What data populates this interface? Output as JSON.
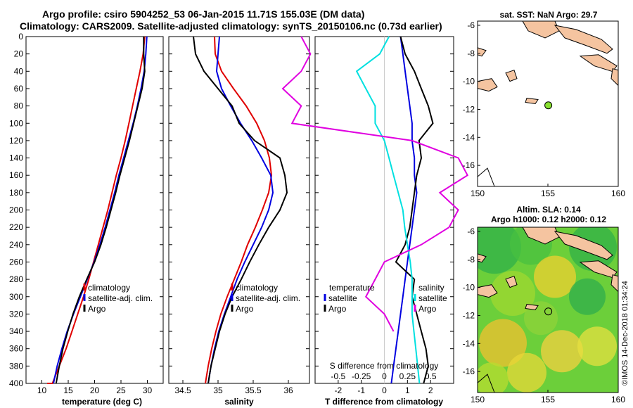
{
  "figure": {
    "title_line1": "Argo profile: csiro 5904252_53 06-Jan-2015 11.71S 155.03E (DM data)",
    "title_line2": "Climatology: CARS2009. Satellite-adjusted climatology: synTS_20150106.nc (0.73d earlier)",
    "watermark": "©IMOS 14-Dec-2018 01:34:24"
  },
  "colors": {
    "climatology": "#e00000",
    "satellite": "#0000e0",
    "argo": "#000000",
    "cyan": "#00e0e0",
    "magenta": "#e000e0",
    "land": "#f5c4a0",
    "float": "#88e030"
  },
  "chart_data": [
    {
      "type": "line",
      "title": "temperature",
      "xlabel": "temperature (deg C)",
      "ylabel": "",
      "xlim": [
        7,
        33
      ],
      "ylim": [
        400,
        0
      ],
      "xticks": [
        10,
        15,
        20,
        25,
        30
      ],
      "yticks": [
        0,
        20,
        40,
        60,
        80,
        100,
        120,
        140,
        160,
        180,
        200,
        220,
        240,
        260,
        280,
        300,
        320,
        340,
        360,
        380,
        400
      ],
      "legend": [
        "climatology",
        "satellite-adj. clim.",
        "Argo"
      ],
      "series": [
        {
          "name": "climatology",
          "color": "#e00000",
          "x": [
            29.5,
            29.2,
            28.6,
            27.9,
            27.2,
            26.5,
            25.8,
            25.0,
            24.1,
            23.3,
            22.5,
            21.6,
            20.7,
            19.8,
            18.9,
            17.9,
            16.8,
            15.7,
            14.6,
            13.3,
            12.0,
            11.0
          ],
          "y": [
            0,
            20,
            40,
            60,
            80,
            100,
            120,
            140,
            160,
            180,
            200,
            220,
            240,
            260,
            280,
            300,
            320,
            340,
            360,
            380,
            400,
            400
          ]
        },
        {
          "name": "satellite-adj. clim.",
          "color": "#0000e0",
          "x": [
            29.9,
            29.7,
            29.4,
            28.8,
            28.1,
            27.3,
            26.4,
            25.5,
            24.6,
            23.8,
            22.9,
            22.0,
            21.0,
            19.9,
            18.6,
            17.3,
            16.0,
            14.8,
            13.8,
            12.9,
            12.2
          ],
          "y": [
            0,
            20,
            40,
            60,
            80,
            100,
            120,
            140,
            160,
            180,
            200,
            220,
            240,
            260,
            280,
            300,
            320,
            340,
            360,
            380,
            400
          ]
        },
        {
          "name": "Argo",
          "color": "#000000",
          "x": [
            29.3,
            29.3,
            29.5,
            29.0,
            28.2,
            27.4,
            26.6,
            25.7,
            24.8,
            24.0,
            23.1,
            22.2,
            21.2,
            20.0,
            18.5,
            17.1,
            15.9,
            14.9,
            14.0,
            13.3,
            12.7
          ],
          "y": [
            0,
            20,
            40,
            60,
            80,
            100,
            120,
            140,
            160,
            180,
            200,
            220,
            240,
            260,
            280,
            300,
            320,
            340,
            360,
            380,
            400
          ]
        }
      ]
    },
    {
      "type": "line",
      "title": "salinity",
      "xlabel": "salinity",
      "ylabel": "",
      "xlim": [
        34.3,
        36.3
      ],
      "ylim": [
        400,
        0
      ],
      "xticks": [
        34.5,
        35,
        35.5,
        36
      ],
      "legend": [
        "climatology",
        "satellite-adj. clim.",
        "Argo"
      ],
      "series": [
        {
          "name": "climatology",
          "color": "#e00000",
          "x": [
            34.95,
            34.96,
            35.05,
            35.22,
            35.4,
            35.55,
            35.66,
            35.73,
            35.76,
            35.72,
            35.63,
            35.53,
            35.42,
            35.33,
            35.23,
            35.13,
            35.04,
            34.97,
            34.91,
            34.86,
            34.82
          ],
          "y": [
            0,
            20,
            40,
            60,
            80,
            100,
            120,
            140,
            160,
            180,
            200,
            220,
            240,
            260,
            280,
            300,
            320,
            340,
            360,
            380,
            400
          ]
        },
        {
          "name": "satellite-adj. clim.",
          "color": "#0000e0",
          "x": [
            35.02,
            35.0,
            34.98,
            35.05,
            35.18,
            35.32,
            35.48,
            35.62,
            35.75,
            35.78,
            35.72,
            35.62,
            35.5,
            35.38,
            35.27,
            35.18,
            35.09,
            35.01,
            34.95,
            34.9,
            34.86
          ],
          "y": [
            0,
            20,
            40,
            60,
            80,
            100,
            120,
            140,
            160,
            180,
            200,
            220,
            240,
            260,
            280,
            300,
            320,
            340,
            360,
            380,
            400
          ]
        },
        {
          "name": "Argo",
          "color": "#000000",
          "x": [
            34.65,
            34.68,
            34.8,
            35.0,
            35.2,
            35.3,
            35.52,
            35.88,
            35.95,
            35.98,
            35.88,
            35.72,
            35.58,
            35.45,
            35.33,
            35.2,
            35.1,
            35.02,
            34.96,
            34.9,
            34.86
          ],
          "y": [
            0,
            20,
            40,
            60,
            80,
            100,
            120,
            140,
            160,
            180,
            200,
            220,
            240,
            260,
            280,
            300,
            320,
            340,
            360,
            380,
            400
          ]
        }
      ]
    },
    {
      "type": "line",
      "title": "difference from climatology",
      "xlabel": "T difference from climatology",
      "xlabel_top": "S difference from climatology",
      "ylabel": "",
      "xlim": [
        -3,
        3
      ],
      "ylim": [
        400,
        0
      ],
      "xticks": [
        -2,
        -1,
        0,
        1,
        2
      ],
      "xticks_top": [
        "-0.5",
        "-0.25",
        "0",
        "0.25",
        "0.5"
      ],
      "legend_left_title": "temperature",
      "legend_left": [
        "satellite",
        "Argo"
      ],
      "legend_right_title": "salinity",
      "legend_right": [
        "satellite",
        "Argo"
      ],
      "series": [
        {
          "name": "temperature satellite",
          "color": "#0000e0",
          "x": [
            0.7,
            0.8,
            0.9,
            1.0,
            1.1,
            1.2,
            1.2,
            1.3,
            1.3,
            1.4,
            1.3,
            1.2,
            1.1,
            1.0,
            0.9,
            0.8,
            0.7,
            0.6,
            0.5,
            0.4,
            0.3
          ],
          "y": [
            0,
            20,
            40,
            60,
            80,
            100,
            120,
            140,
            160,
            180,
            200,
            220,
            240,
            260,
            280,
            300,
            320,
            340,
            360,
            380,
            400
          ]
        },
        {
          "name": "temperature Argo",
          "color": "#000000",
          "x": [
            0.7,
            0.9,
            1.3,
            1.6,
            1.9,
            2.1,
            1.5,
            1.6,
            1.4,
            1.3,
            1.2,
            1.1,
            0.9,
            0.5,
            1.3,
            1.2,
            1.4,
            1.6,
            1.8,
            1.9,
            1.7
          ],
          "y": [
            0,
            20,
            40,
            60,
            80,
            100,
            120,
            140,
            160,
            180,
            200,
            220,
            240,
            260,
            280,
            300,
            320,
            340,
            360,
            380,
            400
          ]
        },
        {
          "name": "salinity satellite",
          "color": "#00e0e0",
          "x": [
            0.05,
            -0.05,
            -0.3,
            -0.2,
            -0.1,
            -0.1,
            0.0,
            0.05,
            0.1,
            0.15,
            0.2,
            0.22,
            0.25,
            0.28,
            0.3,
            0.3,
            0.3,
            0.32,
            0.34,
            0.36,
            0.38
          ],
          "y": [
            0,
            20,
            40,
            60,
            80,
            100,
            120,
            140,
            160,
            180,
            200,
            220,
            240,
            260,
            280,
            300,
            320,
            340,
            360,
            380,
            400
          ]
        },
        {
          "name": "salinity Argo",
          "color": "#e000e0",
          "x": [
            -0.9,
            -0.8,
            -0.9,
            -1.1,
            -0.9,
            -1.0,
            0.3,
            0.8,
            0.9,
            0.6,
            0.8,
            0.7,
            0.4,
            0.0,
            -0.1,
            -0.2,
            0.0,
            0.1
          ],
          "y": [
            0,
            20,
            40,
            60,
            80,
            100,
            120,
            140,
            160,
            180,
            200,
            220,
            240,
            260,
            280,
            300,
            320,
            340
          ]
        }
      ]
    },
    {
      "type": "map",
      "title": "sat. SST: NaN Argo: 29.7",
      "xlim": [
        150,
        160
      ],
      "ylim": [
        -17.5,
        -5.7
      ],
      "xticks": [
        150,
        155,
        160
      ],
      "yticks": [
        -6,
        -8,
        -10,
        -12,
        -14,
        -16
      ],
      "float_lon": 155.03,
      "float_lat": -11.71
    },
    {
      "type": "heatmap",
      "title_line1": "Altim. SLA: 0.14",
      "title_line2": "Argo h1000: 0.12 h2000: 0.12",
      "xlim": [
        150,
        160
      ],
      "ylim": [
        -17.5,
        -5.7
      ],
      "xticks": [
        150,
        155,
        160
      ],
      "yticks": [
        -6,
        -8,
        -10,
        -12,
        -14,
        -16
      ],
      "float_lon": 155.03,
      "float_lat": -11.71
    }
  ]
}
